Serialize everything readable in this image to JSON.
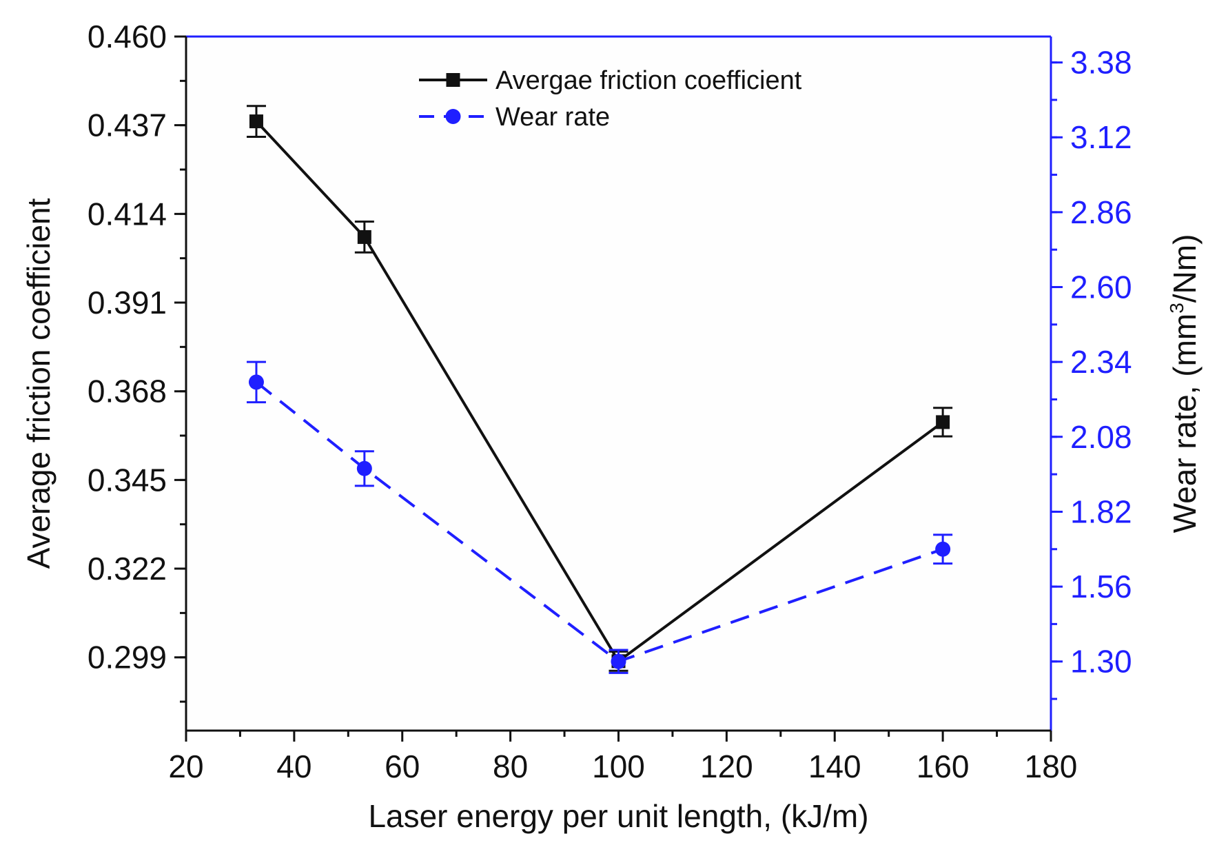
{
  "chart_data": {
    "type": "line",
    "title": "",
    "x": [
      33,
      53,
      100,
      160
    ],
    "xlabel": "Laser energy per unit length, (kJ/m)",
    "xlim": [
      20,
      180
    ],
    "xticks": [
      20,
      40,
      60,
      80,
      100,
      120,
      140,
      160,
      180
    ],
    "xtick_labels": [
      "20",
      "40",
      "60",
      "80",
      "100",
      "120",
      "140",
      "160",
      "180"
    ],
    "y_left": {
      "label": "Average friction coefficient",
      "ylim": [
        0.28,
        0.46
      ],
      "ticks": [
        0.299,
        0.322,
        0.345,
        0.368,
        0.391,
        0.414,
        0.437,
        0.46
      ],
      "tick_labels": [
        "0.299",
        "0.322",
        "0.345",
        "0.368",
        "0.391",
        "0.414",
        "0.437",
        "0.460"
      ],
      "color": "#111111"
    },
    "y_right": {
      "label_prefix": "Wear rate, (mm",
      "label_sup": "3",
      "label_suffix": "/Nm)",
      "ylim": [
        1.06,
        3.47
      ],
      "ticks": [
        1.3,
        1.56,
        1.82,
        2.08,
        2.34,
        2.6,
        2.86,
        3.12,
        3.38
      ],
      "tick_labels": [
        "1.30",
        "1.56",
        "1.82",
        "2.08",
        "2.34",
        "2.60",
        "2.86",
        "3.12",
        "3.38"
      ],
      "color": "#1f1fff"
    },
    "series": [
      {
        "name": "Avergae friction coefficient",
        "axis": "left",
        "values": [
          0.438,
          0.408,
          0.298,
          0.36
        ],
        "errors": [
          0.004,
          0.004,
          0.0025,
          0.0037
        ],
        "color": "#111111",
        "marker": "square",
        "line_style": "solid"
      },
      {
        "name": "Wear rate",
        "axis": "right",
        "values": [
          2.27,
          1.97,
          1.3,
          1.69
        ],
        "errors": [
          0.07,
          0.06,
          0.04,
          0.05
        ],
        "color": "#1f1fff",
        "marker": "circle",
        "line_style": "dashed"
      }
    ],
    "legend_position": "top-center",
    "grid": false
  }
}
